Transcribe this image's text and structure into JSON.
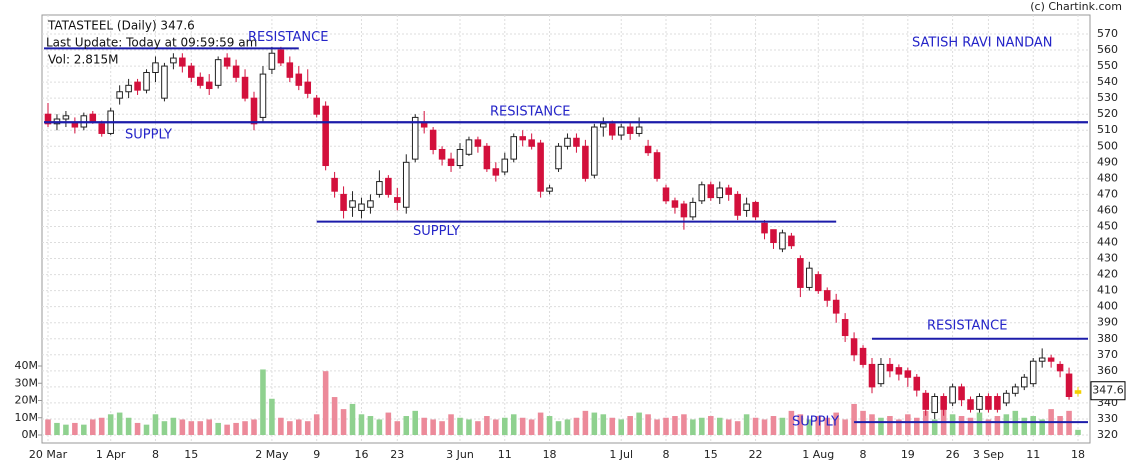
{
  "chart_data": {
    "type": "candlestick",
    "title": "TATASTEEL (Daily) 347.6",
    "subtitle": "Last Update: Today at 09:59:59 am",
    "volume_label": "Vol: 2.815M",
    "credit": "(c) Chartink.com",
    "author": "SATISH RAVI NANDAN",
    "categories": [
      "20 Mar",
      null,
      null,
      null,
      null,
      null,
      null,
      "1 Apr",
      null,
      null,
      null,
      null,
      "8",
      null,
      null,
      null,
      "15",
      null,
      null,
      null,
      null,
      null,
      null,
      null,
      null,
      "2 May",
      null,
      null,
      null,
      null,
      "9",
      null,
      null,
      null,
      null,
      "16",
      null,
      null,
      null,
      "23",
      null,
      null,
      null,
      null,
      null,
      null,
      "3 Jun",
      null,
      null,
      null,
      null,
      "11",
      null,
      null,
      null,
      null,
      "18",
      null,
      null,
      null,
      null,
      null,
      null,
      null,
      "1 Jul",
      null,
      null,
      null,
      null,
      "8",
      null,
      null,
      null,
      null,
      "15",
      null,
      null,
      null,
      null,
      "22",
      null,
      null,
      null,
      null,
      null,
      null,
      "1 Aug",
      null,
      null,
      null,
      null,
      "8",
      null,
      null,
      null,
      null,
      "19",
      null,
      null,
      null,
      null,
      "26",
      null,
      null,
      null,
      "3 Sep",
      null,
      null,
      null,
      null,
      "11",
      null,
      null,
      null,
      null,
      "18"
    ],
    "candles": [
      [
        520,
        527,
        512,
        514
      ],
      [
        514,
        520,
        510,
        517
      ],
      [
        517,
        522,
        512,
        519
      ],
      [
        515,
        518,
        508,
        512
      ],
      [
        512,
        521,
        510,
        519
      ],
      [
        520,
        522,
        514,
        515
      ],
      [
        514,
        516,
        506,
        508
      ],
      [
        508,
        524,
        507,
        522
      ],
      [
        530,
        538,
        526,
        534
      ],
      [
        534,
        542,
        530,
        538
      ],
      [
        540,
        542,
        532,
        535
      ],
      [
        535,
        548,
        533,
        546
      ],
      [
        546,
        556,
        540,
        552
      ],
      [
        530,
        552,
        528,
        550
      ],
      [
        552,
        558,
        548,
        555
      ],
      [
        555,
        558,
        546,
        550
      ],
      [
        550,
        552,
        540,
        543
      ],
      [
        543,
        546,
        536,
        538
      ],
      [
        540,
        545,
        532,
        536
      ],
      [
        538,
        556,
        536,
        554
      ],
      [
        555,
        558,
        548,
        550
      ],
      [
        550,
        554,
        540,
        543
      ],
      [
        543,
        548,
        528,
        530
      ],
      [
        530,
        534,
        510,
        514
      ],
      [
        518,
        550,
        515,
        545
      ],
      [
        548,
        562,
        545,
        558
      ],
      [
        560,
        562,
        550,
        552
      ],
      [
        552,
        556,
        540,
        543
      ],
      [
        545,
        550,
        535,
        538
      ],
      [
        540,
        548,
        530,
        533
      ],
      [
        530,
        532,
        518,
        520
      ],
      [
        525,
        528,
        485,
        488
      ],
      [
        480,
        484,
        468,
        472
      ],
      [
        470,
        475,
        455,
        460
      ],
      [
        462,
        472,
        456,
        466
      ],
      [
        460,
        468,
        455,
        464
      ],
      [
        462,
        470,
        458,
        466
      ],
      [
        470,
        485,
        468,
        478
      ],
      [
        480,
        482,
        468,
        470
      ],
      [
        468,
        474,
        460,
        465
      ],
      [
        462,
        495,
        458,
        490
      ],
      [
        492,
        520,
        490,
        518
      ],
      [
        515,
        522,
        508,
        512
      ],
      [
        510,
        512,
        495,
        498
      ],
      [
        498,
        500,
        488,
        492
      ],
      [
        492,
        496,
        484,
        488
      ],
      [
        488,
        502,
        486,
        498
      ],
      [
        495,
        506,
        494,
        504
      ],
      [
        504,
        506,
        496,
        500
      ],
      [
        500,
        502,
        484,
        486
      ],
      [
        486,
        490,
        478,
        482
      ],
      [
        484,
        496,
        482,
        492
      ],
      [
        492,
        508,
        490,
        506
      ],
      [
        506,
        510,
        500,
        504
      ],
      [
        504,
        508,
        498,
        500
      ],
      [
        502,
        504,
        468,
        472
      ],
      [
        472,
        476,
        470,
        474
      ],
      [
        486,
        502,
        484,
        500
      ],
      [
        500,
        508,
        498,
        505
      ],
      [
        505,
        508,
        496,
        500
      ],
      [
        500,
        504,
        478,
        480
      ],
      [
        482,
        514,
        480,
        512
      ],
      [
        512,
        518,
        506,
        514
      ],
      [
        514,
        516,
        504,
        507
      ],
      [
        507,
        514,
        504,
        512
      ],
      [
        512,
        515,
        504,
        508
      ],
      [
        508,
        518,
        506,
        512
      ],
      [
        500,
        504,
        494,
        496
      ],
      [
        496,
        498,
        478,
        480
      ],
      [
        474,
        476,
        464,
        466
      ],
      [
        466,
        468,
        458,
        462
      ],
      [
        464,
        466,
        448,
        456
      ],
      [
        456,
        468,
        454,
        465
      ],
      [
        466,
        478,
        464,
        476
      ],
      [
        476,
        478,
        466,
        468
      ],
      [
        468,
        478,
        464,
        474
      ],
      [
        474,
        476,
        466,
        470
      ],
      [
        470,
        472,
        454,
        457
      ],
      [
        460,
        468,
        456,
        464
      ],
      [
        465,
        466,
        454,
        456
      ],
      [
        452,
        454,
        442,
        446
      ],
      [
        448,
        448,
        436,
        440
      ],
      [
        436,
        448,
        434,
        446
      ],
      [
        444,
        446,
        436,
        438
      ],
      [
        430,
        432,
        406,
        412
      ],
      [
        412,
        428,
        410,
        424
      ],
      [
        420,
        422,
        408,
        410
      ],
      [
        410,
        412,
        400,
        404
      ],
      [
        404,
        408,
        390,
        396
      ],
      [
        392,
        396,
        378,
        382
      ],
      [
        380,
        384,
        366,
        370
      ],
      [
        374,
        376,
        362,
        364
      ],
      [
        364,
        368,
        346,
        350
      ],
      [
        352,
        368,
        350,
        364
      ],
      [
        364,
        368,
        356,
        360
      ],
      [
        362,
        364,
        354,
        358
      ],
      [
        360,
        362,
        350,
        356
      ],
      [
        356,
        358,
        344,
        348
      ],
      [
        346,
        348,
        332,
        336
      ],
      [
        334,
        346,
        330,
        344
      ],
      [
        344,
        346,
        332,
        336
      ],
      [
        340,
        352,
        338,
        350
      ],
      [
        350,
        352,
        338,
        342
      ],
      [
        342,
        344,
        334,
        336
      ],
      [
        336,
        346,
        334,
        344
      ],
      [
        344,
        346,
        334,
        336
      ],
      [
        344,
        346,
        334,
        336
      ],
      [
        340,
        348,
        338,
        346
      ],
      [
        346,
        352,
        344,
        350
      ],
      [
        350,
        358,
        348,
        356
      ],
      [
        352,
        368,
        350,
        366
      ],
      [
        366,
        374,
        362,
        368
      ],
      [
        368,
        370,
        362,
        366
      ],
      [
        364,
        366,
        356,
        360
      ],
      [
        358,
        362,
        342,
        344
      ],
      [
        346,
        350,
        344,
        347.6
      ]
    ],
    "volumes": [
      9,
      7,
      6,
      7,
      6,
      9,
      10,
      12,
      13,
      10,
      7,
      6,
      12,
      8,
      10,
      9,
      8,
      8,
      9,
      7,
      6,
      7,
      8,
      9,
      38,
      21,
      10,
      8,
      9,
      8,
      12,
      37,
      22,
      15,
      18,
      12,
      11,
      9,
      13,
      8,
      11,
      14,
      10,
      9,
      8,
      12,
      10,
      9,
      8,
      11,
      9,
      10,
      12,
      10,
      9,
      13,
      11,
      8,
      9,
      10,
      14,
      13,
      12,
      10,
      9,
      11,
      13,
      12,
      9,
      10,
      11,
      12,
      9,
      10,
      11,
      10,
      9,
      8,
      12,
      10,
      9,
      11,
      10,
      14,
      12,
      9,
      11,
      10,
      13,
      9,
      18,
      14,
      12,
      10,
      11,
      9,
      12,
      10,
      14,
      9,
      16,
      12,
      11,
      10,
      13,
      9,
      11,
      12,
      14,
      10,
      11,
      9,
      15,
      11,
      14,
      3
    ],
    "ylim": [
      320,
      570
    ],
    "yticks": [
      320,
      330,
      340,
      350,
      360,
      370,
      380,
      390,
      400,
      410,
      420,
      430,
      440,
      450,
      460,
      470,
      480,
      490,
      500,
      510,
      520,
      530,
      540,
      550,
      560,
      570
    ],
    "vlim": [
      0,
      40
    ],
    "vticks": [
      {
        "value": 0,
        "label": "0M"
      },
      {
        "value": 10,
        "label": "10M"
      },
      {
        "value": 20,
        "label": "20M"
      },
      {
        "value": 30,
        "label": "30M"
      },
      {
        "value": 40,
        "label": "40M"
      }
    ],
    "annotations": [
      {
        "text": "RESISTANCE",
        "level": 561,
        "from": 0,
        "to": 28
      },
      {
        "text": "SUPPLY",
        "level": 515,
        "from": 0,
        "to": 115
      },
      {
        "text": "RESISTANCE",
        "level": 515,
        "from": 0,
        "to": 115
      },
      {
        "text": "SUPPLY",
        "level": 453,
        "from": 30,
        "to": 88
      },
      {
        "text": "RESISTANCE",
        "level": 380,
        "from": 92,
        "to": 115
      },
      {
        "text": "SUPPLY",
        "level": 328,
        "from": 90,
        "to": 115
      }
    ],
    "grid": true
  }
}
